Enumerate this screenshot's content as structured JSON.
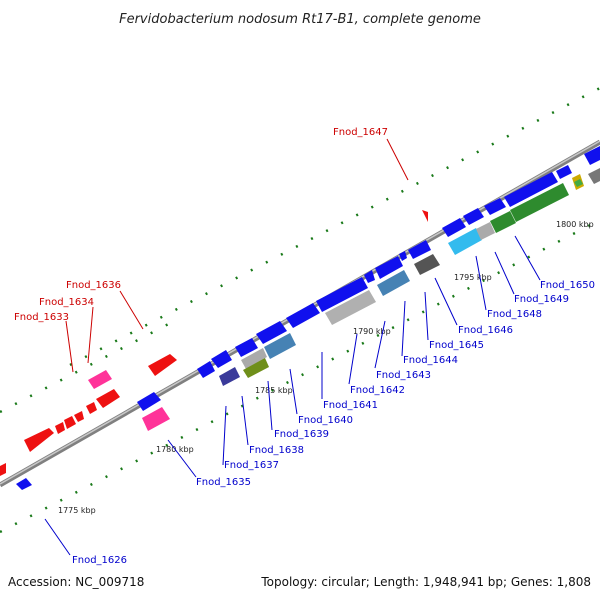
{
  "title": "Fervidobacterium nodosum Rt17-B1, complete genome",
  "footer": {
    "accession": "Accession: NC_009718",
    "stats": "Topology: circular; Length: 1,948,941 bp; Genes: 1,808"
  },
  "colors": {
    "backbone": "#888888",
    "forward_label": "#cc0000",
    "reverse_label": "#0000cc",
    "tick": "#1a7a1a"
  },
  "scale_labels": [
    "1775 kbp",
    "1780 kbp",
    "1785 kbp",
    "1790 kbp",
    "1795 kbp",
    "1800 kbp"
  ],
  "forward_labels": [
    "Fnod_1633",
    "Fnod_1634",
    "Fnod_1636",
    "Fnod_1647"
  ],
  "reverse_labels": [
    "Fnod_1626",
    "Fnod_1635",
    "Fnod_1637",
    "Fnod_1638",
    "Fnod_1639",
    "Fnod_1640",
    "Fnod_1641",
    "Fnod_1642",
    "Fnod_1643",
    "Fnod_1644",
    "Fnod_1645",
    "Fnod_1646",
    "Fnod_1648",
    "Fnod_1649",
    "Fnod_1650"
  ]
}
